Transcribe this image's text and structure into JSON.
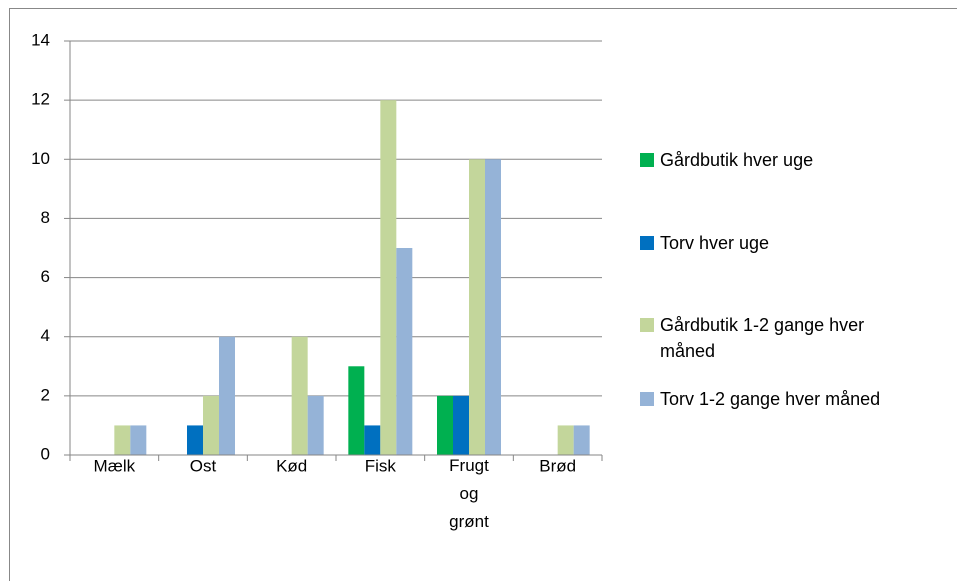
{
  "chart_data": {
    "type": "bar",
    "categories": [
      "Mælk",
      "Ost",
      "Kød",
      "Fisk",
      "Frugt og grønt",
      "Brød"
    ],
    "series": [
      {
        "name": "Gårdbutik hver uge",
        "color": "#00b050",
        "values": [
          0,
          0,
          0,
          3,
          2,
          0
        ]
      },
      {
        "name": "Torv hver uge",
        "color": "#0070c0",
        "values": [
          0,
          1,
          0,
          1,
          2,
          0
        ]
      },
      {
        "name": "Gårdbutik 1-2 gange hver måned",
        "color": "#c3d69b",
        "values": [
          1,
          2,
          4,
          12,
          10,
          1
        ]
      },
      {
        "name": "Torv 1-2 gange hver måned",
        "color": "#95b3d7",
        "values": [
          1,
          4,
          2,
          7,
          10,
          1
        ]
      }
    ],
    "ylim": [
      0,
      14
    ],
    "yticks": [
      0,
      2,
      4,
      6,
      8,
      10,
      12,
      14
    ],
    "grid": true,
    "legend": "right"
  }
}
